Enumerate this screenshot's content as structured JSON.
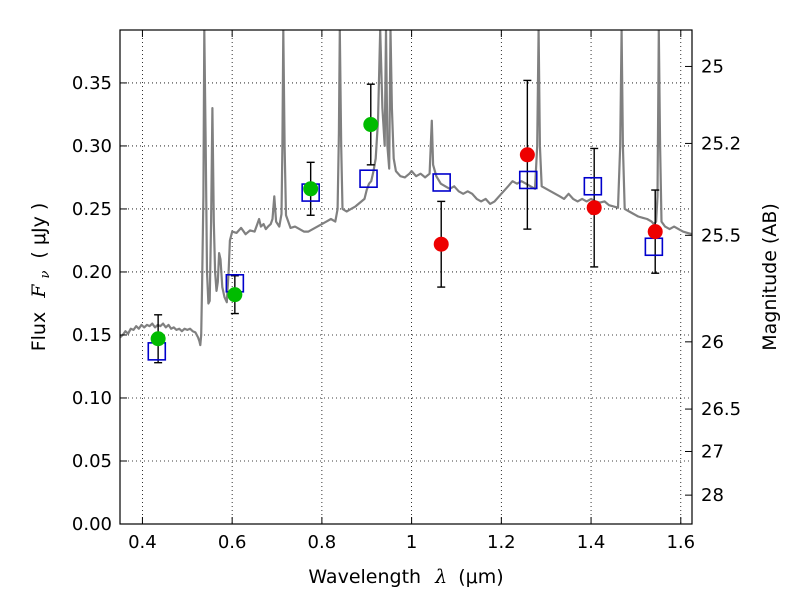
{
  "chart_data": {
    "type": "scatter",
    "xlabel_prefix": "Wavelength",
    "xlabel_symbol": "λ",
    "xlabel_unit": "(μm)",
    "ylabel_prefix": "Flux",
    "ylabel_symbol": "F",
    "ylabel_subscript": "ν",
    "ylabel_unit": "( μJy )",
    "y2label": "Magnitude (AB)",
    "xlim": [
      0.35,
      1.625
    ],
    "ylim": [
      0.0,
      0.392
    ],
    "grid": true,
    "x_ticks": [
      {
        "value": 0.4,
        "label": "0.4"
      },
      {
        "value": 0.6,
        "label": "0.6"
      },
      {
        "value": 0.8,
        "label": "0.8"
      },
      {
        "value": 1.0,
        "label": "1"
      },
      {
        "value": 1.2,
        "label": "1.2"
      },
      {
        "value": 1.4,
        "label": "1.4"
      },
      {
        "value": 1.6,
        "label": "1.6"
      }
    ],
    "y_ticks": [
      {
        "value": 0.0,
        "label": "0.00"
      },
      {
        "value": 0.05,
        "label": "0.05"
      },
      {
        "value": 0.1,
        "label": "0.10"
      },
      {
        "value": 0.15,
        "label": "0.15"
      },
      {
        "value": 0.2,
        "label": "0.20"
      },
      {
        "value": 0.25,
        "label": "0.25"
      },
      {
        "value": 0.3,
        "label": "0.30"
      },
      {
        "value": 0.35,
        "label": "0.35"
      }
    ],
    "y2_ticks": [
      {
        "mag": 25,
        "label": "25"
      },
      {
        "mag": 25.2,
        "label": "25.2"
      },
      {
        "mag": 25.5,
        "label": "25.5"
      },
      {
        "mag": 26,
        "label": "26"
      },
      {
        "mag": 26.5,
        "label": "26.5"
      },
      {
        "mag": 27,
        "label": "27"
      },
      {
        "mag": 28,
        "label": "28"
      }
    ],
    "colors": {
      "green": "#00bb00",
      "red": "#ee0000",
      "model_box": "#0000cc",
      "spectrum": "#808080",
      "error_bar": "#000000"
    },
    "model_points": [
      {
        "x": 0.432,
        "y": 0.137
      },
      {
        "x": 0.606,
        "y": 0.191
      },
      {
        "x": 0.775,
        "y": 0.263
      },
      {
        "x": 0.904,
        "y": 0.274
      },
      {
        "x": 1.067,
        "y": 0.271
      },
      {
        "x": 1.26,
        "y": 0.273
      },
      {
        "x": 1.404,
        "y": 0.268
      },
      {
        "x": 1.54,
        "y": 0.22
      }
    ],
    "observed_points": [
      {
        "x": 0.435,
        "y": 0.147,
        "err": 0.019,
        "color": "green"
      },
      {
        "x": 0.606,
        "y": 0.182,
        "err": 0.015,
        "color": "green"
      },
      {
        "x": 0.775,
        "y": 0.266,
        "err": 0.021,
        "color": "green"
      },
      {
        "x": 0.909,
        "y": 0.317,
        "err": 0.032,
        "color": "green"
      },
      {
        "x": 1.066,
        "y": 0.222,
        "err": 0.034,
        "color": "red"
      },
      {
        "x": 1.258,
        "y": 0.293,
        "err": 0.059,
        "color": "red"
      },
      {
        "x": 1.407,
        "y": 0.251,
        "err": 0.047,
        "color": "red"
      },
      {
        "x": 1.543,
        "y": 0.232,
        "err": 0.033,
        "color": "red"
      }
    ],
    "spectrum": [
      [
        0.35,
        0.148
      ],
      [
        0.356,
        0.15
      ],
      [
        0.362,
        0.153
      ],
      [
        0.368,
        0.151
      ],
      [
        0.374,
        0.155
      ],
      [
        0.38,
        0.154
      ],
      [
        0.386,
        0.157
      ],
      [
        0.392,
        0.155
      ],
      [
        0.398,
        0.158
      ],
      [
        0.404,
        0.156
      ],
      [
        0.41,
        0.158
      ],
      [
        0.416,
        0.157
      ],
      [
        0.422,
        0.159
      ],
      [
        0.428,
        0.156
      ],
      [
        0.434,
        0.158
      ],
      [
        0.44,
        0.157
      ],
      [
        0.446,
        0.159
      ],
      [
        0.452,
        0.156
      ],
      [
        0.458,
        0.158
      ],
      [
        0.464,
        0.155
      ],
      [
        0.47,
        0.156
      ],
      [
        0.476,
        0.154
      ],
      [
        0.482,
        0.155
      ],
      [
        0.488,
        0.153
      ],
      [
        0.494,
        0.155
      ],
      [
        0.5,
        0.154
      ],
      [
        0.506,
        0.155
      ],
      [
        0.512,
        0.153
      ],
      [
        0.518,
        0.152
      ],
      [
        0.524,
        0.148
      ],
      [
        0.527,
        0.145
      ],
      [
        0.529,
        0.142
      ],
      [
        0.531,
        0.15
      ],
      [
        0.533,
        0.19
      ],
      [
        0.536,
        0.26
      ],
      [
        0.538,
        0.392
      ],
      [
        0.541,
        0.3
      ],
      [
        0.544,
        0.2
      ],
      [
        0.547,
        0.175
      ],
      [
        0.55,
        0.177
      ],
      [
        0.553,
        0.24
      ],
      [
        0.556,
        0.33
      ],
      [
        0.559,
        0.24
      ],
      [
        0.562,
        0.2
      ],
      [
        0.565,
        0.185
      ],
      [
        0.568,
        0.192
      ],
      [
        0.571,
        0.215
      ],
      [
        0.574,
        0.21
      ],
      [
        0.578,
        0.188
      ],
      [
        0.583,
        0.18
      ],
      [
        0.588,
        0.176
      ],
      [
        0.592,
        0.2
      ],
      [
        0.595,
        0.225
      ],
      [
        0.6,
        0.232
      ],
      [
        0.61,
        0.231
      ],
      [
        0.62,
        0.235
      ],
      [
        0.63,
        0.23
      ],
      [
        0.64,
        0.233
      ],
      [
        0.65,
        0.232
      ],
      [
        0.656,
        0.238
      ],
      [
        0.66,
        0.242
      ],
      [
        0.664,
        0.236
      ],
      [
        0.67,
        0.238
      ],
      [
        0.675,
        0.234
      ],
      [
        0.68,
        0.236
      ],
      [
        0.686,
        0.238
      ],
      [
        0.69,
        0.242
      ],
      [
        0.694,
        0.26
      ],
      [
        0.698,
        0.24
      ],
      [
        0.705,
        0.236
      ],
      [
        0.71,
        0.246
      ],
      [
        0.712,
        0.3
      ],
      [
        0.714,
        0.392
      ],
      [
        0.717,
        0.3
      ],
      [
        0.72,
        0.245
      ],
      [
        0.73,
        0.235
      ],
      [
        0.74,
        0.236
      ],
      [
        0.75,
        0.234
      ],
      [
        0.76,
        0.232
      ],
      [
        0.77,
        0.232
      ],
      [
        0.78,
        0.234
      ],
      [
        0.79,
        0.236
      ],
      [
        0.8,
        0.238
      ],
      [
        0.81,
        0.24
      ],
      [
        0.82,
        0.242
      ],
      [
        0.83,
        0.24
      ],
      [
        0.835,
        0.25
      ],
      [
        0.838,
        0.31
      ],
      [
        0.84,
        0.392
      ],
      [
        0.843,
        0.3
      ],
      [
        0.846,
        0.25
      ],
      [
        0.855,
        0.248
      ],
      [
        0.865,
        0.25
      ],
      [
        0.875,
        0.252
      ],
      [
        0.885,
        0.255
      ],
      [
        0.895,
        0.258
      ],
      [
        0.9,
        0.265
      ],
      [
        0.905,
        0.27
      ],
      [
        0.91,
        0.272
      ],
      [
        0.915,
        0.28
      ],
      [
        0.92,
        0.29
      ],
      [
        0.925,
        0.32
      ],
      [
        0.93,
        0.392
      ],
      [
        0.935,
        0.33
      ],
      [
        0.94,
        0.3
      ],
      [
        0.943,
        0.392
      ],
      [
        0.946,
        0.3
      ],
      [
        0.95,
        0.282
      ],
      [
        0.953,
        0.392
      ],
      [
        0.956,
        0.33
      ],
      [
        0.96,
        0.29
      ],
      [
        0.965,
        0.28
      ],
      [
        0.975,
        0.276
      ],
      [
        0.985,
        0.275
      ],
      [
        0.995,
        0.278
      ],
      [
        1.0,
        0.28
      ],
      [
        1.01,
        0.276
      ],
      [
        1.02,
        0.278
      ],
      [
        1.03,
        0.275
      ],
      [
        1.04,
        0.278
      ],
      [
        1.045,
        0.32
      ],
      [
        1.048,
        0.285
      ],
      [
        1.055,
        0.276
      ],
      [
        1.065,
        0.27
      ],
      [
        1.075,
        0.268
      ],
      [
        1.085,
        0.266
      ],
      [
        1.095,
        0.268
      ],
      [
        1.105,
        0.264
      ],
      [
        1.115,
        0.262
      ],
      [
        1.125,
        0.264
      ],
      [
        1.135,
        0.262
      ],
      [
        1.145,
        0.258
      ],
      [
        1.155,
        0.256
      ],
      [
        1.165,
        0.258
      ],
      [
        1.175,
        0.254
      ],
      [
        1.185,
        0.256
      ],
      [
        1.195,
        0.26
      ],
      [
        1.205,
        0.264
      ],
      [
        1.215,
        0.268
      ],
      [
        1.225,
        0.272
      ],
      [
        1.235,
        0.27
      ],
      [
        1.245,
        0.272
      ],
      [
        1.255,
        0.27
      ],
      [
        1.265,
        0.268
      ],
      [
        1.275,
        0.266
      ],
      [
        1.28,
        0.3
      ],
      [
        1.283,
        0.392
      ],
      [
        1.286,
        0.3
      ],
      [
        1.29,
        0.268
      ],
      [
        1.3,
        0.266
      ],
      [
        1.31,
        0.264
      ],
      [
        1.32,
        0.262
      ],
      [
        1.33,
        0.26
      ],
      [
        1.34,
        0.258
      ],
      [
        1.35,
        0.262
      ],
      [
        1.36,
        0.258
      ],
      [
        1.37,
        0.256
      ],
      [
        1.38,
        0.258
      ],
      [
        1.39,
        0.256
      ],
      [
        1.4,
        0.258
      ],
      [
        1.41,
        0.256
      ],
      [
        1.42,
        0.255
      ],
      [
        1.43,
        0.256
      ],
      [
        1.44,
        0.253
      ],
      [
        1.45,
        0.252
      ],
      [
        1.46,
        0.251
      ],
      [
        1.465,
        0.3
      ],
      [
        1.468,
        0.392
      ],
      [
        1.471,
        0.3
      ],
      [
        1.475,
        0.25
      ],
      [
        1.485,
        0.248
      ],
      [
        1.495,
        0.246
      ],
      [
        1.505,
        0.244
      ],
      [
        1.515,
        0.243
      ],
      [
        1.525,
        0.242
      ],
      [
        1.535,
        0.24
      ],
      [
        1.54,
        0.238
      ],
      [
        1.545,
        0.24
      ],
      [
        1.548,
        0.26
      ],
      [
        1.551,
        0.392
      ],
      [
        1.554,
        0.3
      ],
      [
        1.557,
        0.24
      ],
      [
        1.565,
        0.236
      ],
      [
        1.575,
        0.234
      ],
      [
        1.585,
        0.236
      ],
      [
        1.595,
        0.234
      ],
      [
        1.605,
        0.232
      ],
      [
        1.615,
        0.231
      ],
      [
        1.625,
        0.23
      ]
    ]
  }
}
